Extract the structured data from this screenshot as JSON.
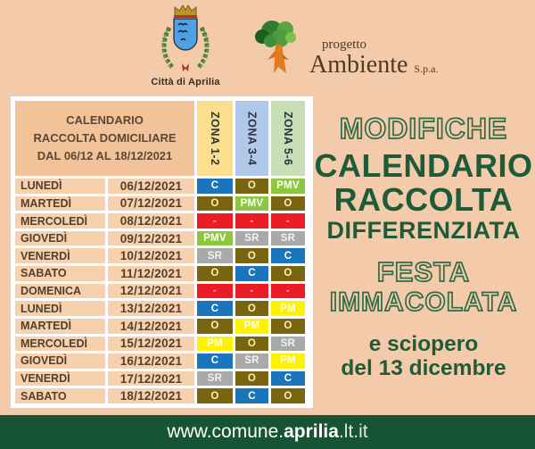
{
  "page": {
    "background": "#f3cbaa",
    "footer_bg": "#175434",
    "accent_green": "#1d5b39"
  },
  "logos": {
    "aprilia": {
      "caption": "Città di Aprilia"
    },
    "ambiente": {
      "line1": "progetto",
      "line2": "Ambiente",
      "suffix": "S.p.a."
    }
  },
  "table": {
    "title1": "CALENDARIO",
    "title2": "RACCOLTA DOMICILIARE",
    "title3": "DAL 06/12 AL 18/12/2021",
    "zones": [
      {
        "label": "ZONA 1-2",
        "bg": "#fbdf8e"
      },
      {
        "label": "ZONA 3-4",
        "bg": "#b1c8ea"
      },
      {
        "label": "ZONA 5-6",
        "bg": "#c8dfb6"
      }
    ],
    "code_colors": {
      "C": {
        "bg": "#1b75bb",
        "fg": "#ffffff"
      },
      "O": {
        "bg": "#79640f",
        "fg": "#f8f0bb"
      },
      "PMV": {
        "bg": "#8dc63f",
        "fg": "#ffffff"
      },
      "SR": {
        "bg": "#a9a9a9",
        "fg": "#f2f2f2"
      },
      "PM": {
        "bg": "#fff200",
        "fg": "#ffffff"
      },
      "-": {
        "bg": "#ec1c24",
        "fg": "#ffdf80"
      }
    },
    "rows": [
      {
        "day": "LUNEDÌ",
        "date": "06/12/2021",
        "zones": [
          "C",
          "O",
          "PMV"
        ]
      },
      {
        "day": "MARTEDÌ",
        "date": "07/12/2021",
        "zones": [
          "O",
          "PMV",
          "O"
        ]
      },
      {
        "day": "MERCOLEDÌ",
        "date": "08/12/2021",
        "zones": [
          "-",
          "-",
          "-"
        ]
      },
      {
        "day": "GIOVEDÌ",
        "date": "09/12/2021",
        "zones": [
          "PMV",
          "SR",
          "SR"
        ]
      },
      {
        "day": "VENERDÌ",
        "date": "10/12/2021",
        "zones": [
          "SR",
          "O",
          "C"
        ]
      },
      {
        "day": "SABATO",
        "date": "11/12/2021",
        "zones": [
          "O",
          "C",
          "O"
        ]
      },
      {
        "day": "DOMENICA",
        "date": "12/12/2021",
        "zones": [
          "-",
          "-",
          "-"
        ]
      },
      {
        "day": "LUNEDÌ",
        "date": "13/12/2021",
        "zones": [
          "C",
          "O",
          "PM"
        ]
      },
      {
        "day": "MARTEDÌ",
        "date": "14/12/2021",
        "zones": [
          "O",
          "PM",
          "O"
        ]
      },
      {
        "day": "MERCOLEDÌ",
        "date": "15/12/2021",
        "zones": [
          "PM",
          "O",
          "SR"
        ]
      },
      {
        "day": "GIOVEDÌ",
        "date": "16/12/2021",
        "zones": [
          "C",
          "SR",
          "PM"
        ]
      },
      {
        "day": "VENERDÌ",
        "date": "17/12/2021",
        "zones": [
          "SR",
          "O",
          "C"
        ]
      },
      {
        "day": "SABATO",
        "date": "18/12/2021",
        "zones": [
          "O",
          "C",
          "O"
        ]
      }
    ]
  },
  "headline": {
    "modifiche": "MODIFICHE",
    "calendario": "CALENDARIO",
    "raccolta": "RACCOLTA",
    "differenziata": "DIFFERENZIATA",
    "festa": "FESTA",
    "immacolata": "IMMACOLATA",
    "sciopero1": "e sciopero",
    "sciopero2": "del 13 dicembre"
  },
  "footer": {
    "url_prefix": "www.comune.",
    "url_bold": "aprilia",
    "url_suffix": ".lt.it"
  }
}
